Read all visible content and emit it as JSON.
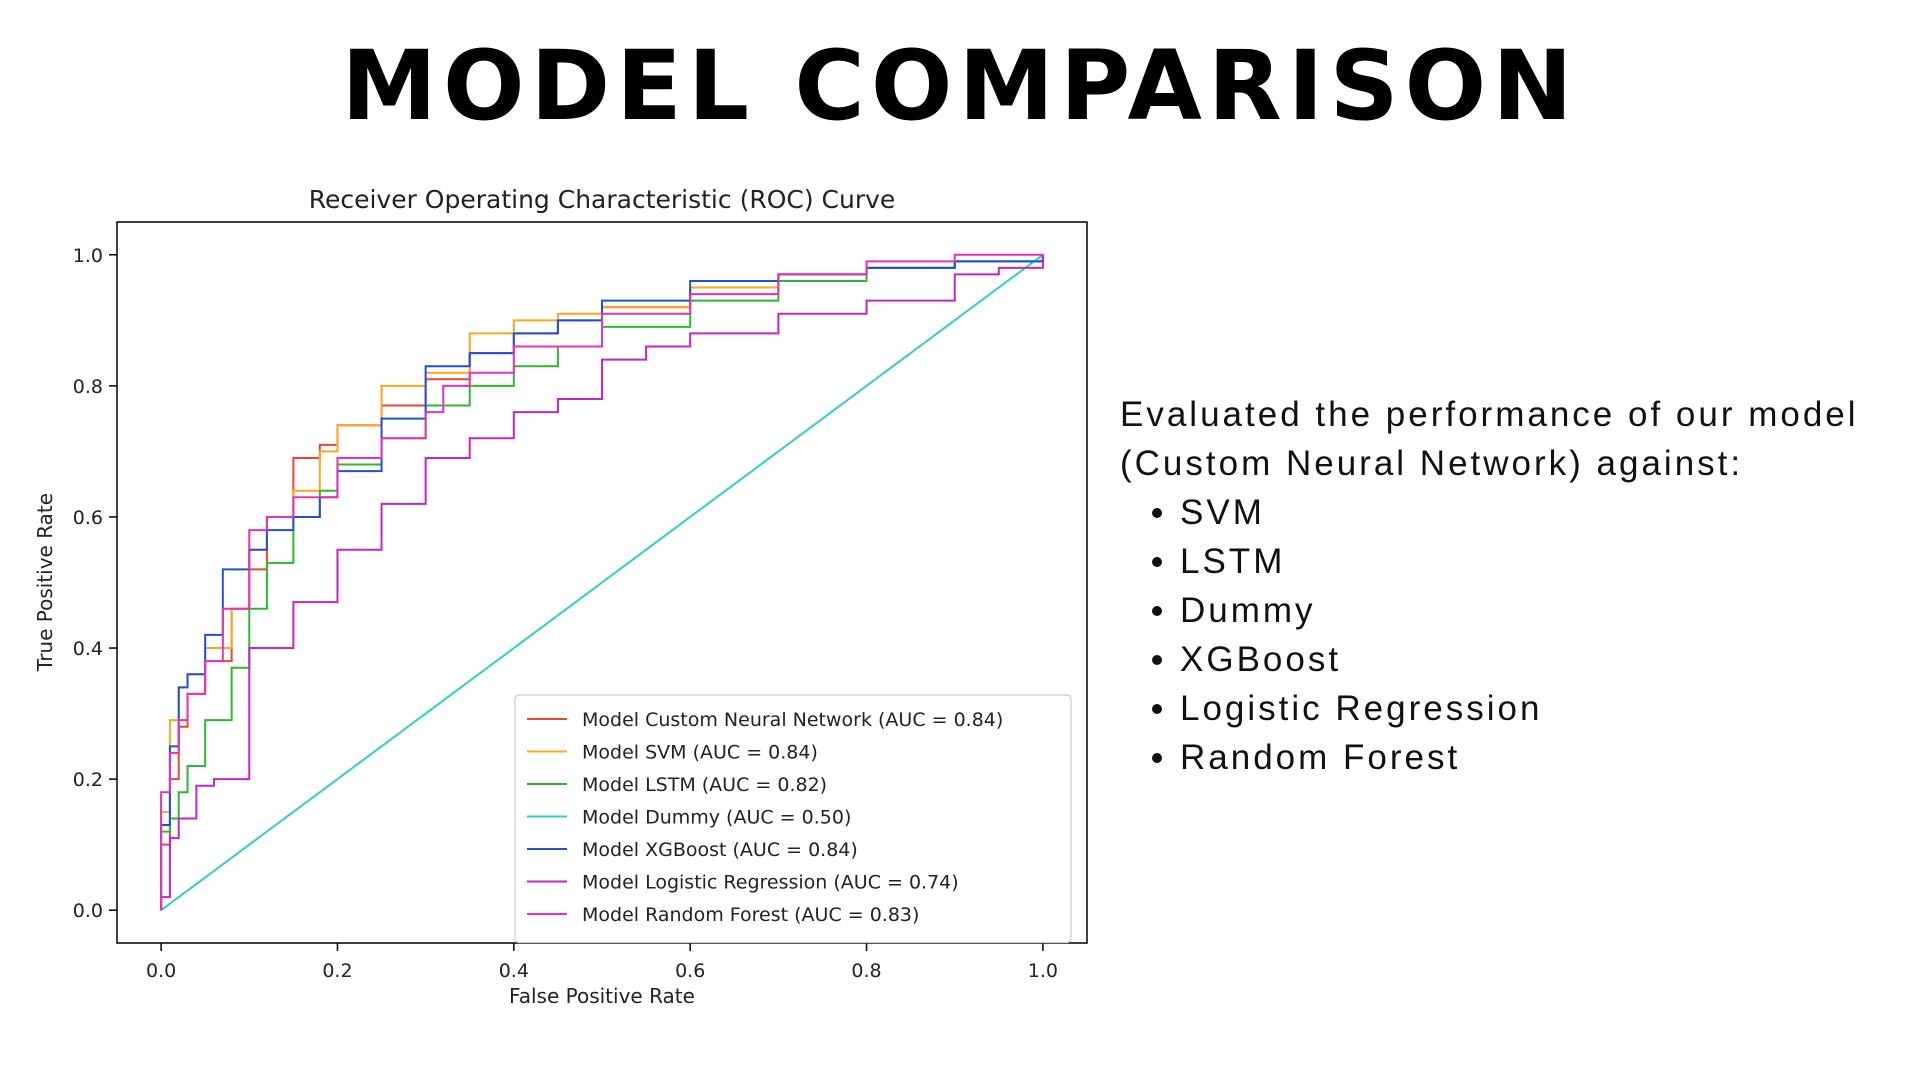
{
  "slide": {
    "title": "MODEL COMPARISON",
    "description_line1": "Evaluated the performance of our model",
    "description_line2": "(Custom Neural Network) against:",
    "models": [
      "SVM",
      "LSTM",
      "Dummy",
      "XGBoost",
      "Logistic Regression",
      "Random Forest"
    ]
  },
  "chart_data": {
    "type": "line",
    "title": "Receiver Operating Characteristic (ROC) Curve",
    "xlabel": "False Positive Rate",
    "ylabel": "True Positive Rate",
    "xlim": [
      -0.05,
      1.05
    ],
    "ylim": [
      -0.05,
      1.05
    ],
    "xticks": [
      "0.0",
      "0.2",
      "0.4",
      "0.6",
      "0.8",
      "1.0"
    ],
    "yticks": [
      "0.0",
      "0.2",
      "0.4",
      "0.6",
      "0.8",
      "1.0"
    ],
    "grid": false,
    "legend_position": "lower-right",
    "series": [
      {
        "name": "Model Custom Neural Network (AUC = 0.84)",
        "color": "#f0452b",
        "x": [
          0,
          0.0,
          0.01,
          0.02,
          0.03,
          0.05,
          0.08,
          0.1,
          0.12,
          0.15,
          0.18,
          0.2,
          0.25,
          0.3,
          0.35,
          0.4,
          0.45,
          0.5,
          0.6,
          0.7,
          0.8,
          0.9,
          1.0
        ],
        "y": [
          0,
          0.1,
          0.2,
          0.28,
          0.33,
          0.38,
          0.46,
          0.52,
          0.6,
          0.69,
          0.71,
          0.74,
          0.77,
          0.81,
          0.85,
          0.88,
          0.9,
          0.92,
          0.95,
          0.97,
          0.98,
          0.99,
          1.0
        ]
      },
      {
        "name": "Model SVM (AUC = 0.84)",
        "color": "#ffa61f",
        "x": [
          0,
          0.0,
          0.01,
          0.02,
          0.03,
          0.05,
          0.08,
          0.1,
          0.12,
          0.15,
          0.18,
          0.2,
          0.25,
          0.3,
          0.35,
          0.4,
          0.45,
          0.5,
          0.6,
          0.7,
          0.8,
          0.9,
          1.0
        ],
        "y": [
          0,
          0.15,
          0.29,
          0.34,
          0.36,
          0.4,
          0.46,
          0.55,
          0.6,
          0.64,
          0.7,
          0.74,
          0.8,
          0.82,
          0.88,
          0.9,
          0.91,
          0.92,
          0.95,
          0.97,
          0.98,
          0.99,
          1.0
        ]
      },
      {
        "name": "Model LSTM (AUC = 0.82)",
        "color": "#2eb82e",
        "x": [
          0,
          0.0,
          0.01,
          0.02,
          0.03,
          0.05,
          0.08,
          0.1,
          0.12,
          0.15,
          0.18,
          0.2,
          0.25,
          0.3,
          0.35,
          0.4,
          0.45,
          0.5,
          0.6,
          0.7,
          0.8,
          0.9,
          1.0
        ],
        "y": [
          0,
          0.12,
          0.14,
          0.18,
          0.22,
          0.29,
          0.37,
          0.46,
          0.53,
          0.6,
          0.64,
          0.68,
          0.72,
          0.77,
          0.8,
          0.83,
          0.86,
          0.89,
          0.93,
          0.96,
          0.98,
          0.99,
          1.0
        ]
      },
      {
        "name": "Model Dummy (AUC = 0.50)",
        "color": "#2ecfc9",
        "x": [
          0,
          1.0
        ],
        "y": [
          0,
          1.0
        ]
      },
      {
        "name": "Model XGBoost (AUC = 0.84)",
        "color": "#1f4fe0",
        "x": [
          0,
          0.0,
          0.01,
          0.02,
          0.03,
          0.05,
          0.07,
          0.1,
          0.12,
          0.15,
          0.18,
          0.2,
          0.25,
          0.3,
          0.35,
          0.4,
          0.45,
          0.5,
          0.6,
          0.7,
          0.8,
          0.9,
          1.0
        ],
        "y": [
          0,
          0.13,
          0.25,
          0.34,
          0.36,
          0.42,
          0.52,
          0.55,
          0.58,
          0.6,
          0.63,
          0.67,
          0.75,
          0.83,
          0.85,
          0.88,
          0.9,
          0.93,
          0.96,
          0.97,
          0.98,
          0.99,
          1.0
        ]
      },
      {
        "name": "Model Logistic Regression (AUC = 0.74)",
        "color": "#c524c9",
        "x": [
          0,
          0.0,
          0.01,
          0.02,
          0.04,
          0.06,
          0.1,
          0.15,
          0.2,
          0.25,
          0.3,
          0.35,
          0.4,
          0.45,
          0.5,
          0.55,
          0.6,
          0.7,
          0.8,
          0.9,
          0.95,
          1.0
        ],
        "y": [
          0,
          0.02,
          0.11,
          0.14,
          0.19,
          0.2,
          0.4,
          0.47,
          0.55,
          0.62,
          0.69,
          0.72,
          0.76,
          0.78,
          0.84,
          0.86,
          0.88,
          0.91,
          0.93,
          0.97,
          0.98,
          1.0
        ]
      },
      {
        "name": "Model Random Forest (AUC = 0.83)",
        "color": "#e831b6",
        "x": [
          0,
          0.0,
          0.01,
          0.02,
          0.03,
          0.05,
          0.07,
          0.1,
          0.12,
          0.15,
          0.2,
          0.25,
          0.3,
          0.32,
          0.35,
          0.4,
          0.5,
          0.6,
          0.7,
          0.8,
          0.9,
          1.0
        ],
        "y": [
          0,
          0.18,
          0.24,
          0.29,
          0.33,
          0.38,
          0.46,
          0.58,
          0.6,
          0.63,
          0.69,
          0.72,
          0.76,
          0.8,
          0.82,
          0.86,
          0.91,
          0.94,
          0.97,
          0.99,
          1.0,
          1.0
        ]
      }
    ]
  }
}
